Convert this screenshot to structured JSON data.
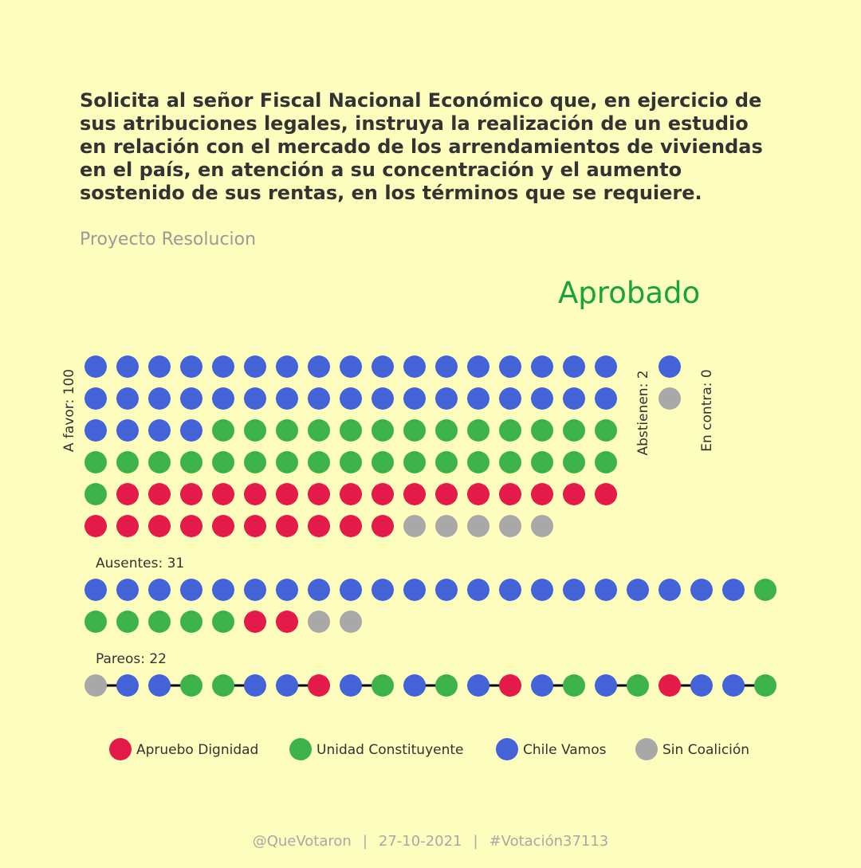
{
  "title": "Solicita al señor Fiscal Nacional Económico que, en ejercicio de sus atribuciones legales, instruya la realización de un estudio en relación con el mercado de los arrendamientos de viviendas en el país, en atención a su concentración y el aumento sostenido de sus rentas, en los términos que se requiere.",
  "subtitle": "Proyecto Resolucion",
  "result": "Aprobado",
  "colors": {
    "background": "#fdfdbe",
    "Apruebo Dignidad": "#e31a4a",
    "Unidad Constituyente": "#3cb44b",
    "Chile Vamos": "#4563d8",
    "Sin Coalición": "#a8a8a8",
    "result": "#1aa33d"
  },
  "footer": {
    "handle": "@QueVotaron",
    "date": "27-10-2021",
    "hashtag": "#Votación37113"
  },
  "chart_data": {
    "type": "dot-matrix",
    "groups": [
      {
        "label": "A favor: 100",
        "count": 100,
        "breakdown": {
          "Chile Vamos": 38,
          "Unidad Constituyente": 31,
          "Apruebo Dignidad": 26,
          "Sin Coalición": 5
        }
      },
      {
        "label": "Abstienen: 2",
        "count": 2,
        "breakdown": {
          "Chile Vamos": 1,
          "Sin Coalición": 1
        }
      },
      {
        "label": "En contra: 0",
        "count": 0,
        "breakdown": {}
      },
      {
        "label": "Ausentes: 31",
        "count": 31,
        "breakdown": {
          "Chile Vamos": 21,
          "Unidad Constituyente": 6,
          "Apruebo Dignidad": 2,
          "Sin Coalición": 2
        }
      },
      {
        "label": "Pareos: 22",
        "count": 22,
        "sequence": [
          "Sin Coalición",
          "Chile Vamos",
          "Chile Vamos",
          "Unidad Constituyente",
          "Unidad Constituyente",
          "Chile Vamos",
          "Chile Vamos",
          "Apruebo Dignidad",
          "Chile Vamos",
          "Unidad Constituyente",
          "Chile Vamos",
          "Unidad Constituyente",
          "Chile Vamos",
          "Apruebo Dignidad",
          "Chile Vamos",
          "Unidad Constituyente",
          "Chile Vamos",
          "Unidad Constituyente",
          "Apruebo Dignidad",
          "Chile Vamos",
          "Chile Vamos",
          "Unidad Constituyente"
        ],
        "pairs": [
          [
            0,
            1
          ],
          [
            2,
            3
          ],
          [
            4,
            5
          ],
          [
            6,
            7
          ],
          [
            8,
            9
          ],
          [
            10,
            11
          ],
          [
            12,
            13
          ],
          [
            14,
            15
          ],
          [
            16,
            17
          ],
          [
            18,
            19
          ],
          [
            20,
            21
          ]
        ]
      }
    ],
    "legend": [
      "Apruebo Dignidad",
      "Unidad Constituyente",
      "Chile Vamos",
      "Sin Coalición"
    ]
  }
}
